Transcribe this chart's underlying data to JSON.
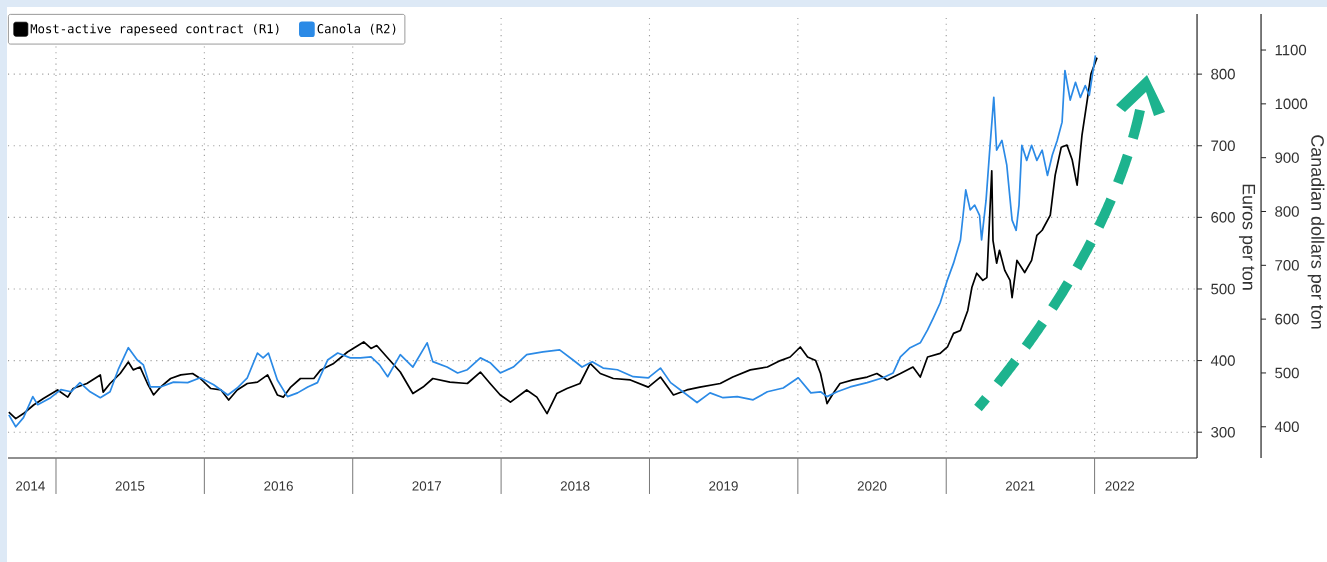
{
  "chart_data": {
    "type": "line",
    "xlim": [
      "2014-09-05",
      "2022-09-10"
    ],
    "xticks": [
      {
        "value": "2014-10-30",
        "label": "2014"
      },
      {
        "value": "2015-01-01",
        "label": null
      },
      {
        "value": "2015-07-02",
        "label": "2015"
      },
      {
        "value": "2016-01-01",
        "label": null
      },
      {
        "value": "2016-07-02",
        "label": "2016"
      },
      {
        "value": "2017-01-01",
        "label": null
      },
      {
        "value": "2017-07-02",
        "label": "2017"
      },
      {
        "value": "2018-01-01",
        "label": null
      },
      {
        "value": "2018-07-02",
        "label": "2018"
      },
      {
        "value": "2019-01-01",
        "label": null
      },
      {
        "value": "2019-07-02",
        "label": "2019"
      },
      {
        "value": "2020-01-01",
        "label": null
      },
      {
        "value": "2020-07-02",
        "label": "2020"
      },
      {
        "value": "2021-01-01",
        "label": null
      },
      {
        "value": "2021-07-02",
        "label": "2021"
      },
      {
        "value": "2022-01-01",
        "label": null
      },
      {
        "value": "2022-03-04",
        "label": "2022"
      }
    ],
    "ylim": [
      264,
      884
    ],
    "yticks": [
      300,
      400,
      500,
      600,
      700,
      800
    ],
    "y2lim": [
      342,
      1167
    ],
    "y2ticks": [
      400,
      500,
      600,
      700,
      800,
      900,
      1000,
      1100
    ],
    "ylabel": "Euros per ton",
    "y2label": "Canadian dollars per ton",
    "grid": true,
    "legend": "top left",
    "series": [
      {
        "name": "Most-active rapeseed contract (R1)",
        "color": "#000000",
        "x": [
          "2014-09-07",
          "2014-09-24",
          "2014-10-13",
          "2014-11-07",
          "2014-12-01",
          "2015-01-05",
          "2015-01-30",
          "2015-02-12",
          "2015-03-18",
          "2015-04-20",
          "2015-04-27",
          "2015-05-14",
          "2015-06-08",
          "2015-06-28",
          "2015-07-10",
          "2015-07-27",
          "2015-08-14",
          "2015-08-29",
          "2015-09-15",
          "2015-10-10",
          "2015-11-04",
          "2015-12-03",
          "2015-12-22",
          "2016-01-17",
          "2016-02-11",
          "2016-03-01",
          "2016-03-22",
          "2016-04-16",
          "2016-05-11",
          "2016-06-05",
          "2016-06-29",
          "2016-07-14",
          "2016-08-01",
          "2016-08-25",
          "2016-09-27",
          "2016-10-14",
          "2016-11-15",
          "2016-12-19",
          "2017-01-28",
          "2017-02-15",
          "2017-03-01",
          "2017-03-26",
          "2017-04-28",
          "2017-05-29",
          "2017-06-23",
          "2017-07-17",
          "2017-08-28",
          "2017-10-10",
          "2017-11-11",
          "2017-12-05",
          "2017-12-30",
          "2018-01-24",
          "2018-03-05",
          "2018-03-30",
          "2018-04-24",
          "2018-05-18",
          "2018-06-12",
          "2018-07-14",
          "2018-08-08",
          "2018-09-02",
          "2018-10-04",
          "2018-11-15",
          "2018-12-29",
          "2019-01-28",
          "2019-03-01",
          "2019-04-03",
          "2019-05-05",
          "2019-06-24",
          "2019-07-25",
          "2019-09-06",
          "2019-10-18",
          "2019-11-19",
          "2019-12-13",
          "2020-01-07",
          "2020-01-25",
          "2020-02-14",
          "2020-02-26",
          "2020-03-13",
          "2020-03-28",
          "2020-04-14",
          "2020-05-16",
          "2020-06-20",
          "2020-07-14",
          "2020-08-08",
          "2020-09-10",
          "2020-10-11",
          "2020-10-29",
          "2020-11-16",
          "2020-12-17",
          "2021-01-04",
          "2021-01-19",
          "2021-02-05",
          "2021-02-23",
          "2021-03-05",
          "2021-03-17",
          "2021-04-01",
          "2021-04-11",
          "2021-04-23",
          "2021-04-26",
          "2021-05-05",
          "2021-05-12",
          "2021-05-25",
          "2021-06-07",
          "2021-06-12",
          "2021-06-24",
          "2021-07-13",
          "2021-07-30",
          "2021-08-12",
          "2021-08-25",
          "2021-09-14",
          "2021-09-26",
          "2021-10-11",
          "2021-10-25",
          "2021-11-07",
          "2021-11-19",
          "2021-12-01",
          "2021-12-14",
          "2021-12-23",
          "2022-01-07"
        ],
        "values": [
          328,
          319,
          326,
          338,
          347,
          359,
          349,
          361,
          368,
          380,
          356,
          368,
          382,
          398,
          387,
          391,
          368,
          352,
          363,
          375,
          380,
          382,
          375,
          361,
          359,
          345,
          359,
          368,
          370,
          380,
          352,
          349,
          363,
          375,
          375,
          387,
          396,
          412,
          426,
          417,
          421,
          405,
          384,
          354,
          363,
          375,
          370,
          368,
          384,
          368,
          352,
          342,
          359,
          349,
          326,
          354,
          361,
          368,
          396,
          382,
          375,
          373,
          363,
          377,
          352,
          359,
          363,
          368,
          377,
          387,
          391,
          400,
          405,
          419,
          405,
          400,
          382,
          340,
          354,
          368,
          373,
          377,
          382,
          373,
          382,
          391,
          377,
          405,
          410,
          419,
          438,
          442,
          470,
          502,
          522,
          512,
          516,
          665,
          568,
          536,
          554,
          526,
          512,
          488,
          540,
          523,
          540,
          575,
          582,
          603,
          659,
          698,
          701,
          680,
          645,
          715,
          764,
          800,
          823
        ]
      },
      {
        "name": "Canola (R2)",
        "color": "#2b8ae6",
        "axis": "y2",
        "x": [
          "2014-09-07",
          "2014-09-24",
          "2014-10-13",
          "2014-11-05",
          "2014-11-17",
          "2014-12-19",
          "2015-01-13",
          "2015-02-07",
          "2015-03-01",
          "2015-03-26",
          "2015-04-20",
          "2015-05-14",
          "2015-06-03",
          "2015-06-28",
          "2015-07-20",
          "2015-08-04",
          "2015-08-21",
          "2015-09-15",
          "2015-10-17",
          "2015-11-21",
          "2015-12-22",
          "2016-01-24",
          "2016-02-28",
          "2016-03-22",
          "2016-04-16",
          "2016-05-11",
          "2016-05-25",
          "2016-06-07",
          "2016-06-29",
          "2016-07-24",
          "2016-08-18",
          "2016-09-12",
          "2016-10-06",
          "2016-10-31",
          "2016-11-25",
          "2016-12-26",
          "2017-01-20",
          "2017-02-15",
          "2017-03-08",
          "2017-03-28",
          "2017-04-28",
          "2017-05-29",
          "2017-07-03",
          "2017-07-17",
          "2017-08-21",
          "2017-09-16",
          "2017-10-10",
          "2017-11-11",
          "2017-12-05",
          "2017-12-30",
          "2018-01-31",
          "2018-03-05",
          "2018-04-14",
          "2018-05-25",
          "2018-06-27",
          "2018-07-19",
          "2018-08-13",
          "2018-09-09",
          "2018-10-14",
          "2018-11-22",
          "2018-12-29",
          "2019-01-28",
          "2019-02-22",
          "2019-03-24",
          "2019-04-28",
          "2019-05-30",
          "2019-07-01",
          "2019-08-05",
          "2019-09-13",
          "2019-10-18",
          "2019-11-26",
          "2020-01-02",
          "2020-02-02",
          "2020-02-26",
          "2020-03-13",
          "2020-04-07",
          "2020-05-09",
          "2020-06-20",
          "2020-07-29",
          "2020-08-23",
          "2020-09-10",
          "2020-10-04",
          "2020-10-29",
          "2020-11-16",
          "2020-11-30",
          "2020-12-17",
          "2021-01-04",
          "2021-01-19",
          "2021-02-05",
          "2021-02-18",
          "2021-03-01",
          "2021-03-12",
          "2021-03-24",
          "2021-03-29",
          "2021-04-09",
          "2021-04-18",
          "2021-04-28",
          "2021-05-05",
          "2021-05-18",
          "2021-05-30",
          "2021-06-12",
          "2021-06-22",
          "2021-06-29",
          "2021-07-06",
          "2021-07-18",
          "2021-07-30",
          "2021-08-12",
          "2021-08-25",
          "2021-09-07",
          "2021-09-19",
          "2021-10-01",
          "2021-10-13",
          "2021-10-20",
          "2021-11-02",
          "2021-11-15",
          "2021-11-27",
          "2021-12-09",
          "2021-12-19",
          "2022-01-03"
        ],
        "values": [
          422,
          400,
          417,
          456,
          441,
          454,
          469,
          465,
          482,
          465,
          454,
          465,
          506,
          547,
          524,
          515,
          474,
          474,
          483,
          482,
          491,
          478,
          459,
          472,
          491,
          537,
          528,
          537,
          487,
          456,
          463,
          474,
          482,
          524,
          537,
          528,
          528,
          530,
          515,
          493,
          534,
          511,
          556,
          521,
          511,
          500,
          506,
          528,
          519,
          500,
          511,
          534,
          539,
          543,
          524,
          511,
          521,
          509,
          506,
          493,
          491,
          509,
          482,
          465,
          445,
          463,
          454,
          456,
          450,
          465,
          472,
          491,
          463,
          465,
          456,
          465,
          474,
          482,
          491,
          500,
          530,
          547,
          556,
          580,
          602,
          630,
          673,
          704,
          747,
          840,
          803,
          812,
          793,
          747,
          821,
          914,
          1012,
          914,
          932,
          886,
          784,
          765,
          812,
          923,
          895,
          923,
          895,
          914,
          867,
          905,
          932,
          966,
          1062,
          1007,
          1040,
          1012,
          1034,
          1016,
          1090
        ]
      }
    ]
  }
}
